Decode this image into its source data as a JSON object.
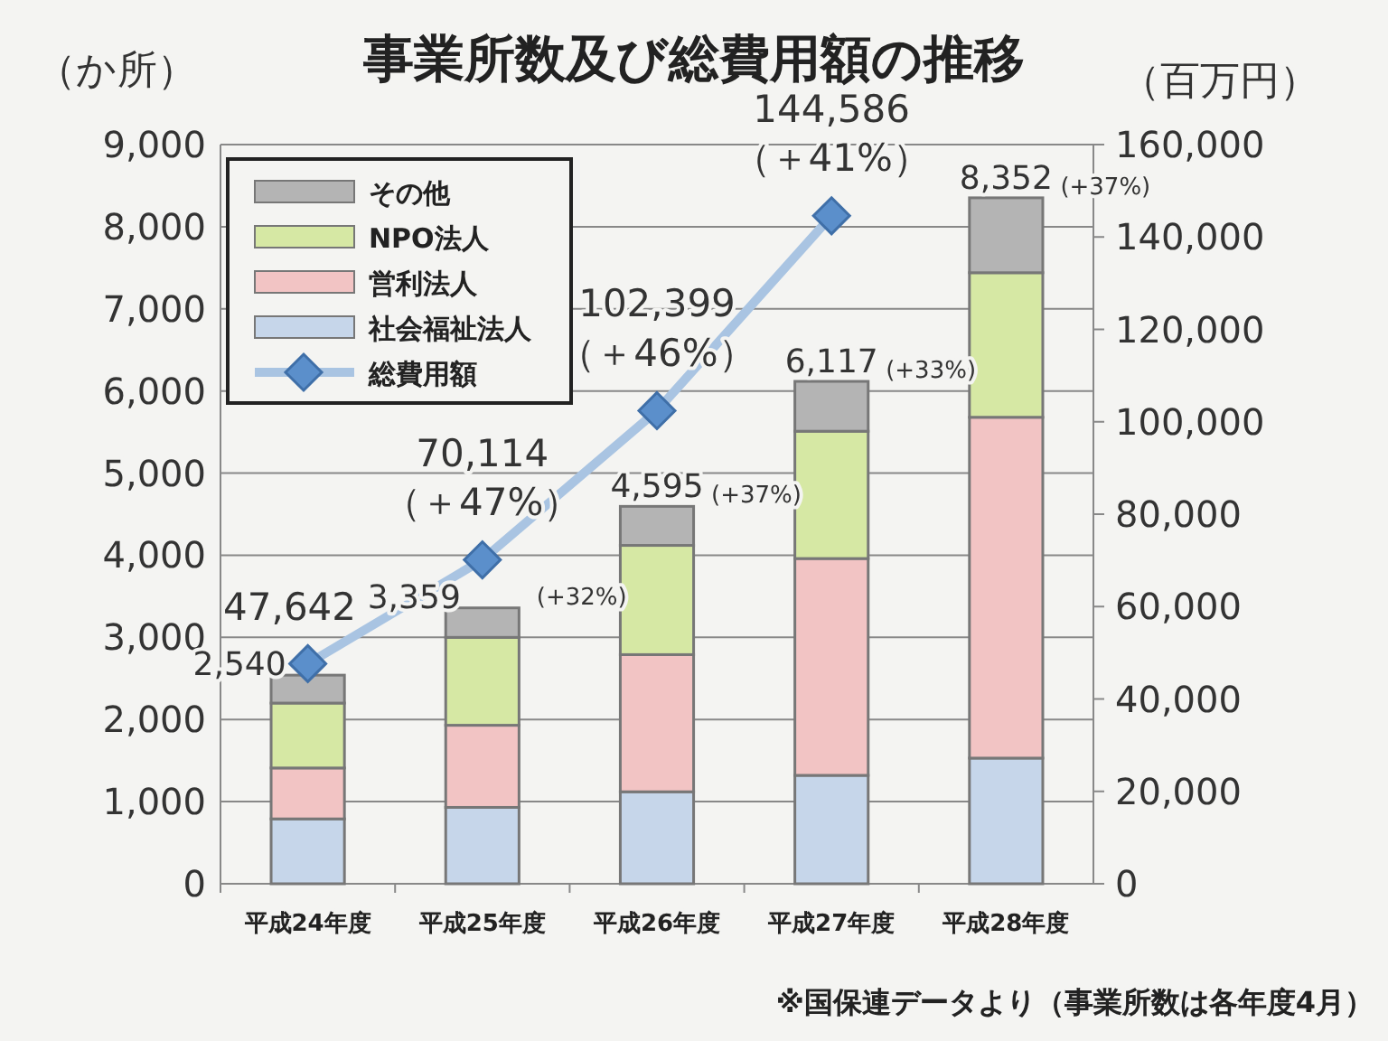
{
  "chart_data": {
    "type": "bar",
    "title": "事業所数及び総費用額の推移",
    "ylabel": "（か所）",
    "y2label": "（百万円）",
    "categories": [
      "平成24年度",
      "平成25年度",
      "平成26年度",
      "平成27年度",
      "平成28年度"
    ],
    "stacked": true,
    "series": [
      {
        "name": "社会福祉法人",
        "color": "#c6d6ea",
        "values": [
          790,
          930,
          1120,
          1320,
          1530
        ]
      },
      {
        "name": "営利法人",
        "color": "#f2c4c4",
        "values": [
          620,
          1000,
          1670,
          2640,
          4150
        ]
      },
      {
        "name": "NPO法人",
        "color": "#d6e8a4",
        "values": [
          790,
          1070,
          1330,
          1550,
          1760
        ]
      },
      {
        "name": "その他",
        "color": "#b4b4b4",
        "values": [
          340,
          359,
          475,
          607,
          912
        ]
      },
      {
        "name": "総費用額",
        "type": "line",
        "axis": "y2",
        "color": "#a9c4e2",
        "marker": "diamond",
        "values": [
          47642,
          70114,
          102399,
          144586,
          null
        ],
        "value_labels": [
          "47,642",
          "70,114\n（＋47%）",
          "102,399\n（＋46%）",
          "144,586\n（＋41%）",
          null
        ]
      }
    ],
    "totals": [
      "2,540",
      "3,359",
      "4,595",
      "6,117",
      "8,352"
    ],
    "ylim": [
      0,
      9000
    ],
    "yticks": [
      0,
      {
        "value": 1000,
        "label": "1,000"
      },
      {
        "value": 2000,
        "label": "2,000"
      },
      {
        "value": 3000,
        "label": "3,000"
      },
      {
        "value": 4000,
        "label": "4,000"
      },
      {
        "value": 5000,
        "label": "5,000"
      },
      {
        "value": 6000,
        "label": "6,000"
      },
      {
        "value": 7000,
        "label": "7,000"
      },
      {
        "value": 8000,
        "label": "8,000"
      },
      {
        "value": 9000,
        "label": "9,000"
      }
    ],
    "y2lim": [
      0,
      160000
    ],
    "y2ticks": [
      0,
      {
        "value": 20000,
        "label": "20,000"
      },
      {
        "value": 40000,
        "label": "40,000"
      },
      {
        "value": 60000,
        "label": "60,000"
      },
      {
        "value": 80000,
        "label": "80,000"
      },
      {
        "value": 100000,
        "label": "100,000"
      },
      {
        "value": 120000,
        "label": "120,000"
      },
      {
        "value": 140000,
        "label": "140,000"
      },
      {
        "value": 160000,
        "label": "160,000"
      }
    ],
    "grid": "y",
    "legend": "top left",
    "annotations": [
      {
        "text": "(+32%)",
        "x": "平成25年度",
        "y": 3359
      },
      {
        "text": "(+37%)",
        "x": "平成26年度",
        "y": 4595
      },
      {
        "text": "(+33%)",
        "x": "平成27年度",
        "y": 6117
      },
      {
        "text": "(+37%)",
        "x": "平成28年度",
        "y": 8352
      },
      "※国保連データより（事業所数は各年度4月）"
    ]
  }
}
